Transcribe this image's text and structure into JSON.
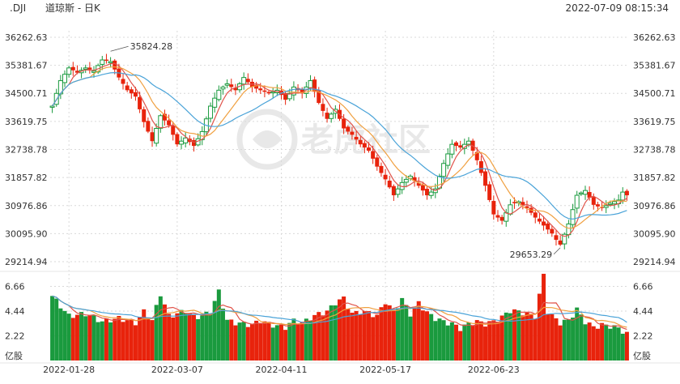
{
  "header": {
    "symbol": ".DJI",
    "name": "道琼斯 - 日K",
    "timestamp": "2022-07-09 08:15:34"
  },
  "watermark": {
    "text": "老虎社区"
  },
  "colors": {
    "up": "#1a9a3e",
    "down": "#e8230c",
    "ma_short": "#e0534a",
    "ma_mid": "#f0a040",
    "ma_long": "#4aa3d8",
    "grid": "#d9d9d9",
    "axis_text": "#333333"
  },
  "chart_data": [
    {
      "type": "candlestick",
      "price_ticks": [
        "36262.63",
        "35381.67",
        "34500.71",
        "33619.75",
        "32738.78",
        "31857.82",
        "30976.86",
        "30095.90",
        "29214.94"
      ],
      "ylim": [
        29214.94,
        36262.63
      ],
      "annotations": [
        {
          "text": "35824.28",
          "date_index": 14,
          "value": 35824.28
        },
        {
          "text": "29653.29",
          "date_index": 122,
          "value": 29653.29
        }
      ],
      "x_tick_labels": [
        {
          "label": "2022-01-28",
          "date_index": 4
        },
        {
          "label": "2022-03-07",
          "date_index": 30
        },
        {
          "label": "2022-04-11",
          "date_index": 55
        },
        {
          "label": "2022-05-17",
          "date_index": 80
        },
        {
          "label": "2022-06-23",
          "date_index": 106
        }
      ],
      "close_keypoints": [
        [
          0,
          34100
        ],
        [
          2,
          34900
        ],
        [
          4,
          35300
        ],
        [
          6,
          35150
        ],
        [
          8,
          35300
        ],
        [
          10,
          35200
        ],
        [
          12,
          35550
        ],
        [
          14,
          35500
        ],
        [
          16,
          35000
        ],
        [
          18,
          34600
        ],
        [
          20,
          34400
        ],
        [
          22,
          33600
        ],
        [
          24,
          33000
        ],
        [
          26,
          33800
        ],
        [
          28,
          33500
        ],
        [
          30,
          32900
        ],
        [
          32,
          33100
        ],
        [
          34,
          32850
        ],
        [
          36,
          33300
        ],
        [
          38,
          34100
        ],
        [
          40,
          34600
        ],
        [
          42,
          34800
        ],
        [
          44,
          34600
        ],
        [
          46,
          35000
        ],
        [
          48,
          34700
        ],
        [
          50,
          34600
        ],
        [
          52,
          34500
        ],
        [
          54,
          34600
        ],
        [
          56,
          34300
        ],
        [
          58,
          34700
        ],
        [
          60,
          34500
        ],
        [
          62,
          34900
        ],
        [
          64,
          34200
        ],
        [
          66,
          33700
        ],
        [
          68,
          34000
        ],
        [
          70,
          33400
        ],
        [
          72,
          33200
        ],
        [
          74,
          32900
        ],
        [
          76,
          32700
        ],
        [
          78,
          32200
        ],
        [
          80,
          31800
        ],
        [
          82,
          31300
        ],
        [
          84,
          31700
        ],
        [
          86,
          31900
        ],
        [
          88,
          31600
        ],
        [
          90,
          31300
        ],
        [
          92,
          31500
        ],
        [
          94,
          32300
        ],
        [
          96,
          32900
        ],
        [
          98,
          32800
        ],
        [
          100,
          33000
        ],
        [
          102,
          32400
        ],
        [
          104,
          31600
        ],
        [
          106,
          30700
        ],
        [
          108,
          30500
        ],
        [
          110,
          31000
        ],
        [
          112,
          31100
        ],
        [
          114,
          30900
        ],
        [
          116,
          30600
        ],
        [
          118,
          30350
        ],
        [
          120,
          30100
        ],
        [
          121,
          29900
        ],
        [
          122,
          29750
        ],
        [
          124,
          30400
        ],
        [
          126,
          31300
        ],
        [
          128,
          31450
        ],
        [
          130,
          31000
        ],
        [
          132,
          30900
        ],
        [
          134,
          31050
        ],
        [
          136,
          31150
        ],
        [
          137,
          31400
        ],
        [
          138,
          31300
        ]
      ],
      "series": [
        {
          "name": "",
          "period": 5,
          "color_key": "ma_short"
        },
        {
          "name": "",
          "period": 10,
          "color_key": "ma_mid"
        },
        {
          "name": "",
          "period": 20,
          "color_key": "ma_long"
        }
      ]
    },
    {
      "type": "bar",
      "unit_label": "亿股",
      "volume_ticks": [
        "6.66",
        "4.44",
        "2.22"
      ],
      "ylim": [
        0,
        7.5
      ],
      "volume_keypoints": [
        [
          0,
          5.8
        ],
        [
          4,
          4.0
        ],
        [
          8,
          4.2
        ],
        [
          12,
          3.5
        ],
        [
          16,
          3.8
        ],
        [
          20,
          3.4
        ],
        [
          22,
          4.4
        ],
        [
          24,
          3.6
        ],
        [
          26,
          6.0
        ],
        [
          28,
          4.0
        ],
        [
          30,
          4.2
        ],
        [
          32,
          4.5
        ],
        [
          34,
          3.9
        ],
        [
          36,
          4.0
        ],
        [
          38,
          4.4
        ],
        [
          40,
          6.2
        ],
        [
          42,
          3.6
        ],
        [
          44,
          3.4
        ],
        [
          46,
          3.3
        ],
        [
          48,
          3.2
        ],
        [
          50,
          3.6
        ],
        [
          52,
          3.3
        ],
        [
          54,
          3.1
        ],
        [
          56,
          3.0
        ],
        [
          58,
          3.6
        ],
        [
          60,
          3.4
        ],
        [
          62,
          3.8
        ],
        [
          64,
          4.2
        ],
        [
          66,
          4.4
        ],
        [
          68,
          5.2
        ],
        [
          70,
          5.6
        ],
        [
          72,
          4.2
        ],
        [
          74,
          4.4
        ],
        [
          76,
          4.3
        ],
        [
          78,
          4.0
        ],
        [
          80,
          5.3
        ],
        [
          82,
          4.4
        ],
        [
          84,
          5.5
        ],
        [
          86,
          4.2
        ],
        [
          88,
          5.2
        ],
        [
          90,
          4.3
        ],
        [
          92,
          3.8
        ],
        [
          94,
          3.5
        ],
        [
          96,
          3.3
        ],
        [
          98,
          2.9
        ],
        [
          100,
          3.3
        ],
        [
          102,
          3.5
        ],
        [
          104,
          3.3
        ],
        [
          106,
          3.5
        ],
        [
          108,
          3.9
        ],
        [
          110,
          4.5
        ],
        [
          112,
          4.4
        ],
        [
          114,
          4.2
        ],
        [
          116,
          4.0
        ],
        [
          118,
          7.7
        ],
        [
          119,
          4.4
        ],
        [
          120,
          4.0
        ],
        [
          122,
          3.4
        ],
        [
          124,
          3.6
        ],
        [
          126,
          4.6
        ],
        [
          128,
          3.5
        ],
        [
          130,
          3.0
        ],
        [
          132,
          3.2
        ],
        [
          134,
          3.1
        ],
        [
          136,
          2.9
        ],
        [
          138,
          2.4
        ]
      ],
      "series": [
        {
          "name": "",
          "period": 5,
          "color_key": "ma_short"
        },
        {
          "name": "",
          "period": 10,
          "color_key": "ma_mid"
        },
        {
          "name": "",
          "period": 20,
          "color_key": "ma_long"
        }
      ]
    }
  ]
}
